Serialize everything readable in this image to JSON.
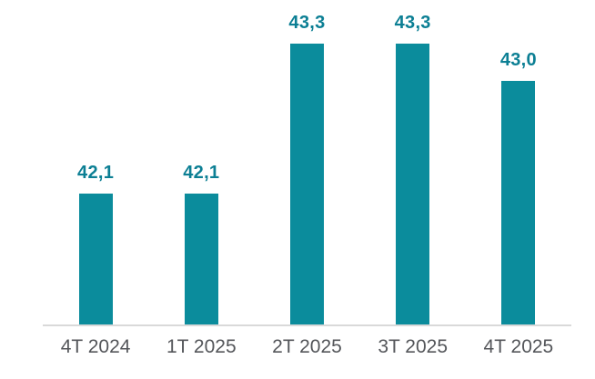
{
  "chart_data": {
    "type": "bar",
    "title": "",
    "categories": [
      "4T 2024",
      "1T 2025",
      "2T 2025",
      "3T 2025",
      "4T 2025"
    ],
    "values": [
      42.1,
      42.1,
      43.3,
      43.3,
      43.0
    ],
    "value_labels": [
      "42,1",
      "42,1",
      "43,3",
      "43,3",
      "43,0"
    ],
    "xlabel": "",
    "ylabel": "",
    "ylim": [
      41.05,
      43.5
    ],
    "grid": false,
    "legend": false,
    "y_axis_visible": false,
    "bar_color": "#0b8c9c",
    "value_label_color": "#0c7f94",
    "axis_label_color": "#54565a",
    "axis_line_color": "#d9d9d9"
  }
}
